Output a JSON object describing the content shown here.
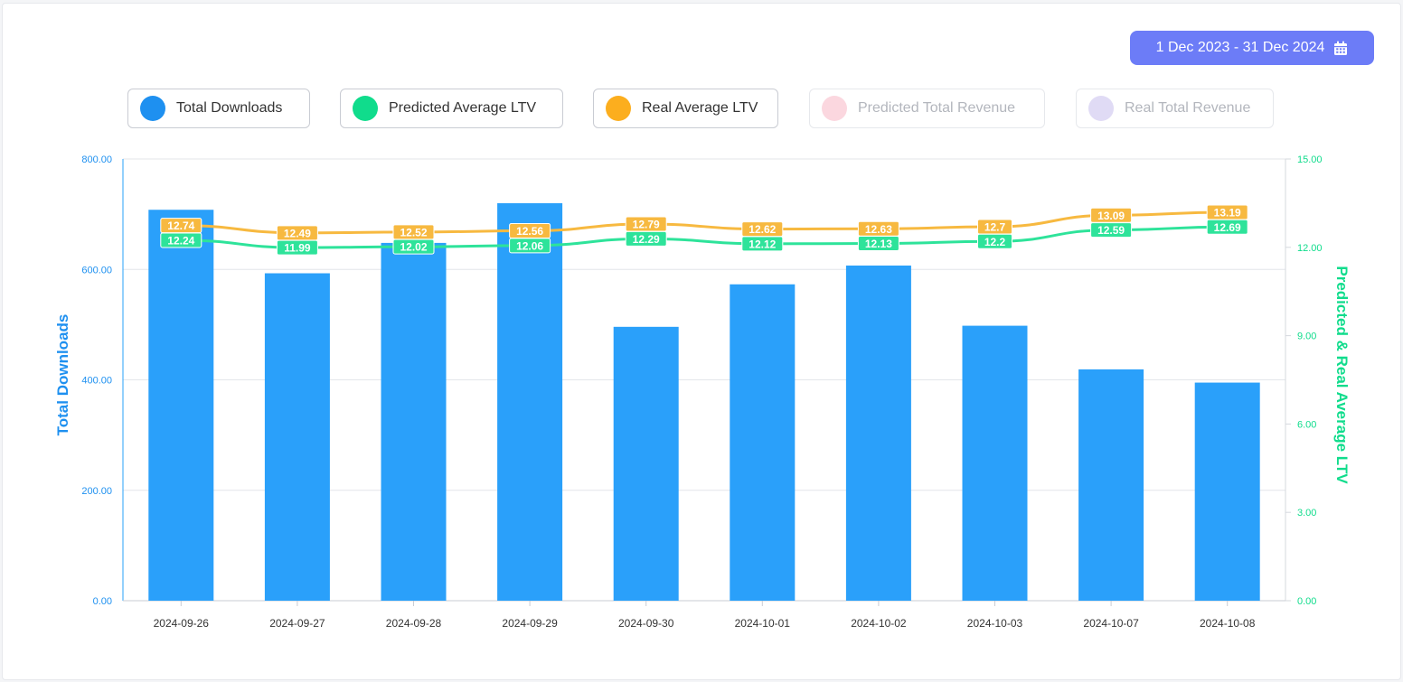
{
  "date_range": {
    "label": "1 Dec 2023 - 31 Dec 2024",
    "icon": "calendar-icon"
  },
  "legend": [
    {
      "label": "Total Downloads",
      "color": "#1e90f0",
      "active": true
    },
    {
      "label": "Predicted Average LTV",
      "color": "#10dc8c",
      "active": true
    },
    {
      "label": "Real Average LTV",
      "color": "#fcae1e",
      "active": true
    },
    {
      "label": "Predicted Total Revenue",
      "color": "#fbd7df",
      "active": false
    },
    {
      "label": "Real Total Revenue",
      "color": "#e0dbf5",
      "active": false
    }
  ],
  "chart_data": {
    "type": "bar",
    "categories": [
      "2024-09-26",
      "2024-09-27",
      "2024-09-28",
      "2024-09-29",
      "2024-09-30",
      "2024-10-01",
      "2024-10-02",
      "2024-10-03",
      "2024-10-07",
      "2024-10-08"
    ],
    "left_axis": {
      "label": "Total Downloads",
      "ylim": [
        0,
        800
      ],
      "ticks": [
        "0.00",
        "200.00",
        "400.00",
        "600.00",
        "800.00"
      ],
      "color": "#1e90f0"
    },
    "right_axis": {
      "label": "Predicted & Real Average LTV",
      "ylim": [
        0,
        15
      ],
      "ticks": [
        "0.00",
        "3.00",
        "6.00",
        "9.00",
        "12.00",
        "15.00"
      ],
      "color": "#10dc8c"
    },
    "series": [
      {
        "name": "Total Downloads",
        "type": "bar",
        "axis": "left",
        "color": "#2aa0fa",
        "values": [
          708,
          593,
          648,
          720,
          496,
          573,
          607,
          498,
          419,
          395
        ]
      },
      {
        "name": "Predicted Average LTV",
        "type": "line",
        "axis": "right",
        "color": "#2ee39a",
        "values": [
          12.24,
          11.99,
          12.02,
          12.06,
          12.29,
          12.12,
          12.13,
          12.2,
          12.59,
          12.69
        ],
        "labels": [
          "12.24",
          "11.99",
          "12.02",
          "12.06",
          "12.29",
          "12.12",
          "12.13",
          "12.2",
          "12.59",
          "12.69"
        ]
      },
      {
        "name": "Real Average LTV",
        "type": "line",
        "axis": "right",
        "color": "#f7b940",
        "values": [
          12.74,
          12.49,
          12.52,
          12.56,
          12.79,
          12.62,
          12.63,
          12.7,
          13.09,
          13.19
        ],
        "labels": [
          "12.74",
          "12.49",
          "12.52",
          "12.56",
          "12.79",
          "12.62",
          "12.63",
          "12.7",
          "13.09",
          "13.19"
        ]
      }
    ],
    "grid": true
  }
}
